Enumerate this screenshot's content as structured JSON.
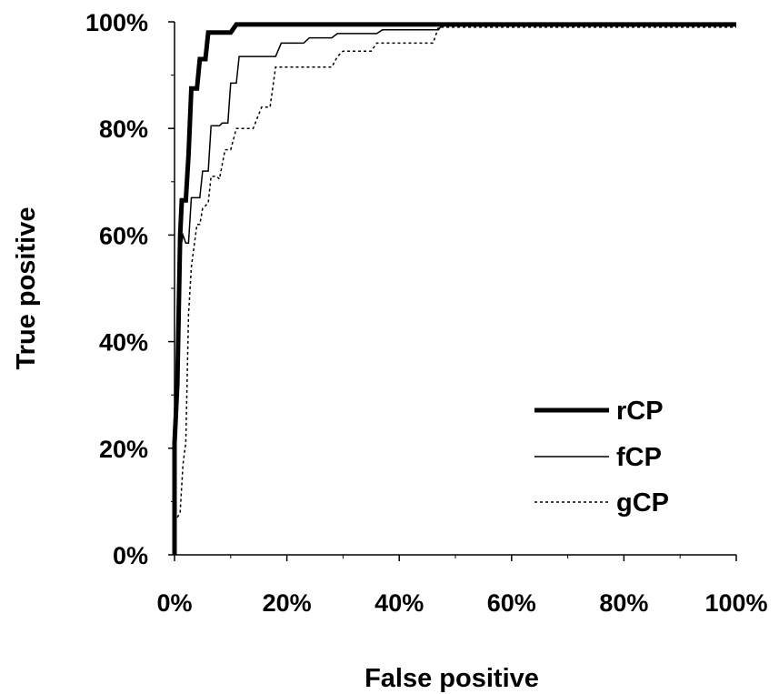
{
  "chart_data": {
    "type": "line",
    "title": "",
    "xlabel": "False positive",
    "ylabel": "True positive",
    "xlim": [
      0,
      100
    ],
    "ylim": [
      0,
      100
    ],
    "x_ticks": [
      0,
      20,
      40,
      60,
      80,
      100
    ],
    "x_tick_labels": [
      "0%",
      "20%",
      "40%",
      "60%",
      "80%",
      "100%"
    ],
    "y_ticks": [
      0,
      20,
      40,
      60,
      80,
      100
    ],
    "y_tick_labels": [
      "0%",
      "20%",
      "40%",
      "60%",
      "80%",
      "100%"
    ],
    "grid": false,
    "legend_position": "lower-right",
    "series": [
      {
        "name": "rCP",
        "style": "thick-solid",
        "color": "#000000",
        "points": [
          [
            0,
            0
          ],
          [
            0,
            21
          ],
          [
            0.5,
            32
          ],
          [
            1,
            60
          ],
          [
            1.3,
            66.5
          ],
          [
            2,
            66.5
          ],
          [
            2.5,
            75
          ],
          [
            3,
            87.5
          ],
          [
            4,
            87.5
          ],
          [
            4.5,
            93
          ],
          [
            5,
            93
          ],
          [
            5.5,
            93
          ],
          [
            6,
            98
          ],
          [
            7,
            98
          ],
          [
            8,
            98
          ],
          [
            10,
            98
          ],
          [
            11,
            99.5
          ],
          [
            20,
            99.5
          ],
          [
            50,
            99.5
          ],
          [
            100,
            99.5
          ]
        ]
      },
      {
        "name": "fCP",
        "style": "thin-solid",
        "color": "#000000",
        "points": [
          [
            0,
            0
          ],
          [
            0,
            21.5
          ],
          [
            0.5,
            33
          ],
          [
            1,
            57
          ],
          [
            1.5,
            60
          ],
          [
            2,
            58.5
          ],
          [
            2.5,
            58.5
          ],
          [
            3,
            67
          ],
          [
            4.5,
            67
          ],
          [
            5,
            72
          ],
          [
            6,
            72
          ],
          [
            6.5,
            80.5
          ],
          [
            8,
            80.5
          ],
          [
            8.5,
            81
          ],
          [
            9.5,
            81
          ],
          [
            10,
            88.5
          ],
          [
            11,
            88.5
          ],
          [
            11.5,
            93.5
          ],
          [
            18,
            93.5
          ],
          [
            19,
            96
          ],
          [
            23,
            96
          ],
          [
            24,
            97
          ],
          [
            28,
            97
          ],
          [
            29,
            97.8
          ],
          [
            36,
            97.8
          ],
          [
            37,
            98.5
          ],
          [
            47,
            98.5
          ],
          [
            47.5,
            99.3
          ],
          [
            85,
            99.3
          ],
          [
            100,
            99.3
          ]
        ]
      },
      {
        "name": "gCP",
        "style": "dotted",
        "color": "#000000",
        "points": [
          [
            0,
            0
          ],
          [
            0,
            6
          ],
          [
            1,
            8
          ],
          [
            1.5,
            17
          ],
          [
            2,
            21
          ],
          [
            2.5,
            45
          ],
          [
            3,
            54
          ],
          [
            4,
            62
          ],
          [
            4.5,
            62
          ],
          [
            5,
            65
          ],
          [
            6,
            66
          ],
          [
            6.5,
            71
          ],
          [
            7.5,
            71
          ],
          [
            8,
            70.5
          ],
          [
            9,
            76
          ],
          [
            10,
            76
          ],
          [
            11,
            80
          ],
          [
            14,
            80
          ],
          [
            15.5,
            84
          ],
          [
            17,
            84
          ],
          [
            18,
            91.5
          ],
          [
            28,
            91.5
          ],
          [
            29,
            93.5
          ],
          [
            30,
            94.5
          ],
          [
            35,
            94.5
          ],
          [
            36,
            96
          ],
          [
            46,
            96
          ],
          [
            47,
            99
          ],
          [
            100,
            99
          ]
        ]
      }
    ]
  }
}
